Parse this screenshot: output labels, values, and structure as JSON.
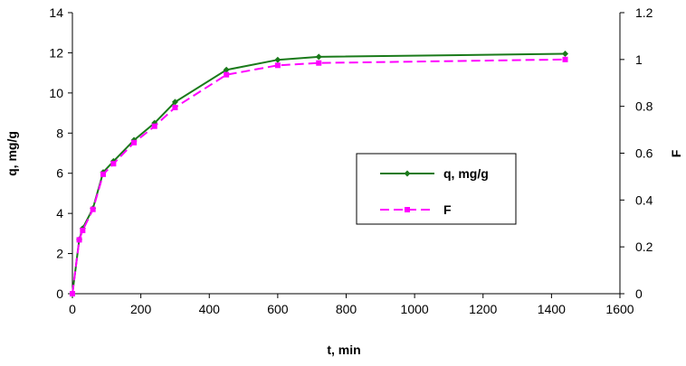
{
  "chart_data": {
    "type": "line",
    "xlabel": "t, min",
    "ylabel": "q, mg/g",
    "y2label": "F",
    "xlim": [
      0,
      1600
    ],
    "ylim": [
      0,
      14
    ],
    "y2lim": [
      0,
      1.2
    ],
    "xticks": [
      0,
      200,
      400,
      600,
      800,
      1000,
      1200,
      1400,
      1600
    ],
    "yticks": [
      0,
      2,
      4,
      6,
      8,
      10,
      12,
      14
    ],
    "y2ticks": [
      0,
      0.2,
      0.4,
      0.6,
      0.8,
      1,
      1.2
    ],
    "grid": false,
    "legend_position": "center-right",
    "series": [
      {
        "name": "q, mg/g",
        "axis": "left",
        "color": "#1a7a1a",
        "line_style": "solid",
        "marker": "diamond",
        "x": [
          0,
          20,
          30,
          60,
          90,
          120,
          180,
          240,
          300,
          450,
          600,
          720,
          1440
        ],
        "y": [
          0,
          2.7,
          3.25,
          4.25,
          6.05,
          6.6,
          7.65,
          8.5,
          9.55,
          11.15,
          11.65,
          11.8,
          11.95
        ]
      },
      {
        "name": "F",
        "axis": "right",
        "color": "#ff00ff",
        "line_style": "dashed",
        "marker": "square",
        "x": [
          0,
          20,
          30,
          60,
          90,
          120,
          180,
          240,
          300,
          450,
          600,
          720,
          1440
        ],
        "y": [
          0,
          0.23,
          0.27,
          0.36,
          0.51,
          0.555,
          0.645,
          0.715,
          0.795,
          0.935,
          0.975,
          0.985,
          1.0
        ]
      }
    ]
  }
}
